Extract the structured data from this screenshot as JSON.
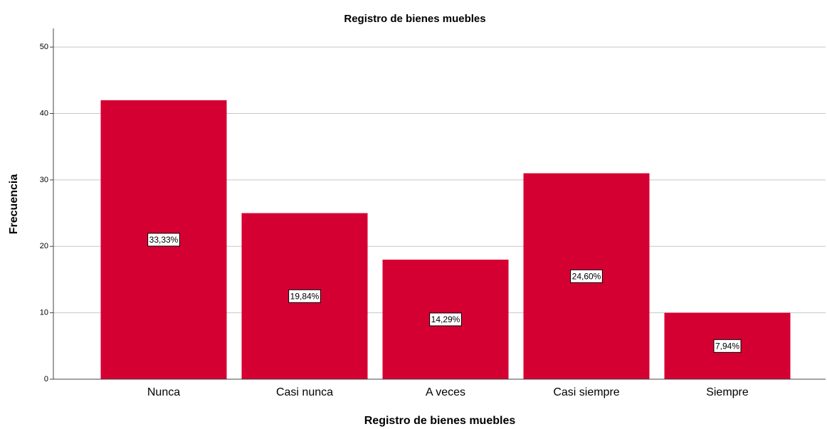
{
  "chart_data": {
    "type": "bar",
    "title": "Registro de bienes muebles",
    "x_label": "Registro de bienes muebles",
    "y_label": "Frecuencia",
    "categories": [
      "Nunca",
      "Casi nunca",
      "A veces",
      "Casi siempre",
      "Siempre"
    ],
    "values": [
      42,
      25,
      18,
      31,
      10
    ],
    "percent_labels": [
      "33,33%",
      "19,84%",
      "14,29%",
      "24,60%",
      "7,94%"
    ],
    "color": "#d50032",
    "ylim": [
      0,
      52.8
    ],
    "yticks": [
      0,
      10,
      20,
      30,
      40,
      50
    ],
    "grid": true
  }
}
